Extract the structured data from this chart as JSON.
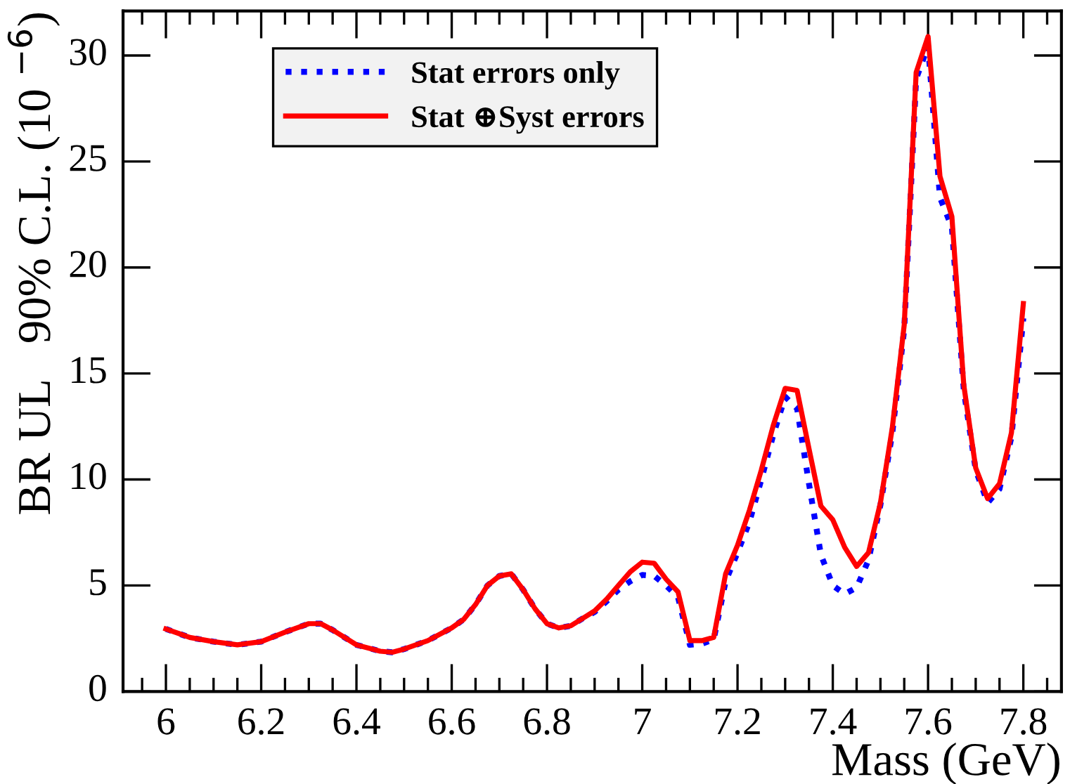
{
  "chart_data": {
    "type": "line",
    "xlabel": "Mass (GeV)",
    "ylabel": "BR UL   90% C.L. (10 $^{−6}$)",
    "xlim": [
      5.91,
      7.88
    ],
    "ylim": [
      0,
      32.1
    ],
    "xticks": [
      6,
      6.2,
      6.4,
      6.6,
      6.8,
      7,
      7.2,
      7.4,
      7.6,
      7.8
    ],
    "yticks": [
      0,
      5,
      10,
      15,
      20,
      25,
      30
    ],
    "grid": false,
    "legend": "top left",
    "marker": "none",
    "series": [
      {
        "name": "Stat errors only",
        "color": "#0000ff",
        "line_style": "dotted",
        "x": [
          6.0,
          6.05,
          6.1,
          6.15,
          6.2,
          6.25,
          6.3,
          6.325,
          6.35,
          6.4,
          6.45,
          6.475,
          6.5,
          6.55,
          6.6,
          6.625,
          6.65,
          6.675,
          6.7,
          6.725,
          6.75,
          6.775,
          6.8,
          6.825,
          6.85,
          6.875,
          6.9,
          6.925,
          6.95,
          6.975,
          7.0,
          7.025,
          7.05,
          7.075,
          7.1,
          7.125,
          7.15,
          7.175,
          7.2,
          7.225,
          7.25,
          7.275,
          7.3,
          7.325,
          7.35,
          7.375,
          7.4,
          7.425,
          7.45,
          7.475,
          7.5,
          7.525,
          7.55,
          7.575,
          7.6,
          7.625,
          7.65,
          7.675,
          7.7,
          7.725,
          7.75,
          7.775,
          7.8
        ],
        "values": [
          2.95,
          2.55,
          2.35,
          2.2,
          2.35,
          2.8,
          3.2,
          3.2,
          2.9,
          2.2,
          1.9,
          1.85,
          2.0,
          2.4,
          3.0,
          3.4,
          4.1,
          5.0,
          5.45,
          5.55,
          4.8,
          3.9,
          3.2,
          3.0,
          3.1,
          3.45,
          3.75,
          4.25,
          4.8,
          5.2,
          5.5,
          5.45,
          5.0,
          4.45,
          2.2,
          2.25,
          2.45,
          5.2,
          6.55,
          8.0,
          10.0,
          12.1,
          13.9,
          13.35,
          9.8,
          6.45,
          5.0,
          4.6,
          4.9,
          6.2,
          8.8,
          12.2,
          17.1,
          28.9,
          30.45,
          23.3,
          21.9,
          14.2,
          10.45,
          8.9,
          9.55,
          12.0,
          17.6
        ]
      },
      {
        "name": "Stat ⊕Syst errors",
        "color": "#ff0000",
        "line_style": "solid",
        "x": [
          6.0,
          6.05,
          6.1,
          6.15,
          6.2,
          6.25,
          6.3,
          6.325,
          6.35,
          6.4,
          6.45,
          6.475,
          6.5,
          6.55,
          6.6,
          6.625,
          6.65,
          6.675,
          6.7,
          6.725,
          6.75,
          6.775,
          6.8,
          6.825,
          6.85,
          6.875,
          6.9,
          6.925,
          6.95,
          6.975,
          7.0,
          7.025,
          7.05,
          7.075,
          7.1,
          7.125,
          7.15,
          7.175,
          7.2,
          7.225,
          7.25,
          7.275,
          7.3,
          7.325,
          7.35,
          7.375,
          7.4,
          7.425,
          7.45,
          7.475,
          7.5,
          7.525,
          7.55,
          7.575,
          7.6,
          7.625,
          7.65,
          7.675,
          7.7,
          7.725,
          7.75,
          7.775,
          7.8
        ],
        "values": [
          2.95,
          2.55,
          2.35,
          2.2,
          2.35,
          2.8,
          3.2,
          3.2,
          2.9,
          2.2,
          1.9,
          1.85,
          2.0,
          2.4,
          3.0,
          3.4,
          4.1,
          5.0,
          5.45,
          5.55,
          4.8,
          3.9,
          3.2,
          3.0,
          3.1,
          3.45,
          3.8,
          4.35,
          5.0,
          5.65,
          6.1,
          6.05,
          5.3,
          4.7,
          2.4,
          2.4,
          2.55,
          5.55,
          6.9,
          8.55,
          10.45,
          12.55,
          14.3,
          14.2,
          11.45,
          8.75,
          8.1,
          6.8,
          5.9,
          6.55,
          8.9,
          12.45,
          17.3,
          29.2,
          30.9,
          24.3,
          22.4,
          14.45,
          10.55,
          9.1,
          9.8,
          12.2,
          18.3
        ]
      }
    ]
  }
}
